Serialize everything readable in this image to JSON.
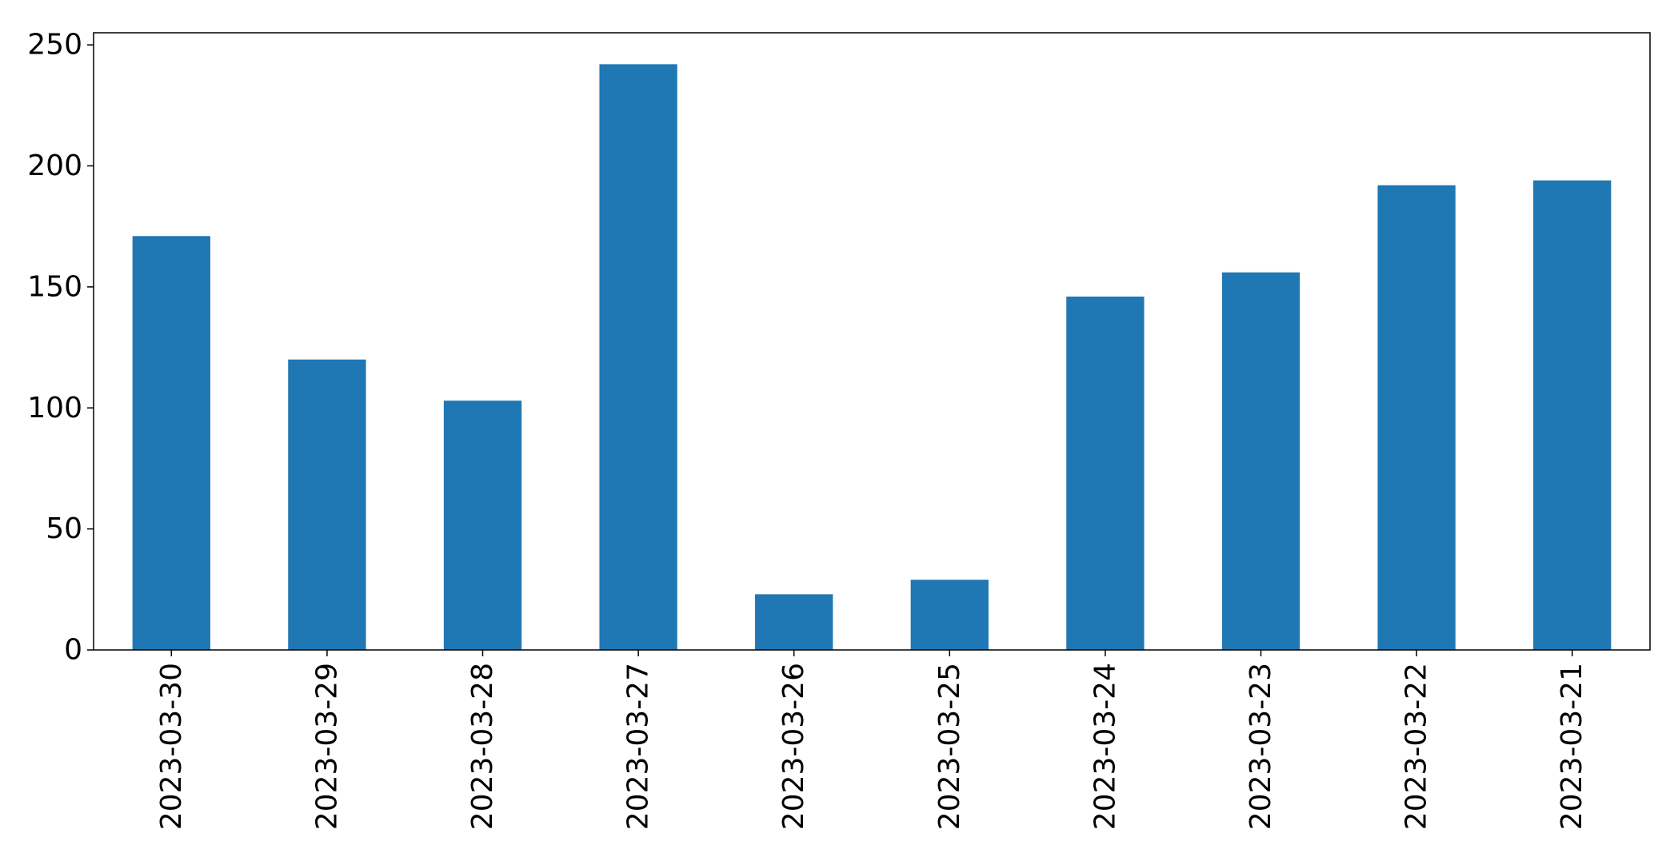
{
  "chart_data": {
    "type": "bar",
    "title": "",
    "xlabel": "",
    "ylabel": "",
    "categories": [
      "2023-03-30",
      "2023-03-29",
      "2023-03-28",
      "2023-03-27",
      "2023-03-26",
      "2023-03-25",
      "2023-03-24",
      "2023-03-23",
      "2023-03-22",
      "2023-03-21"
    ],
    "values": [
      171,
      120,
      103,
      242,
      23,
      29,
      146,
      156,
      192,
      194
    ],
    "ylim": [
      0,
      255
    ],
    "yticks": [
      0,
      50,
      100,
      150,
      200,
      250
    ],
    "grid": false,
    "legend": "none",
    "bar_color": "#1f77b4"
  }
}
